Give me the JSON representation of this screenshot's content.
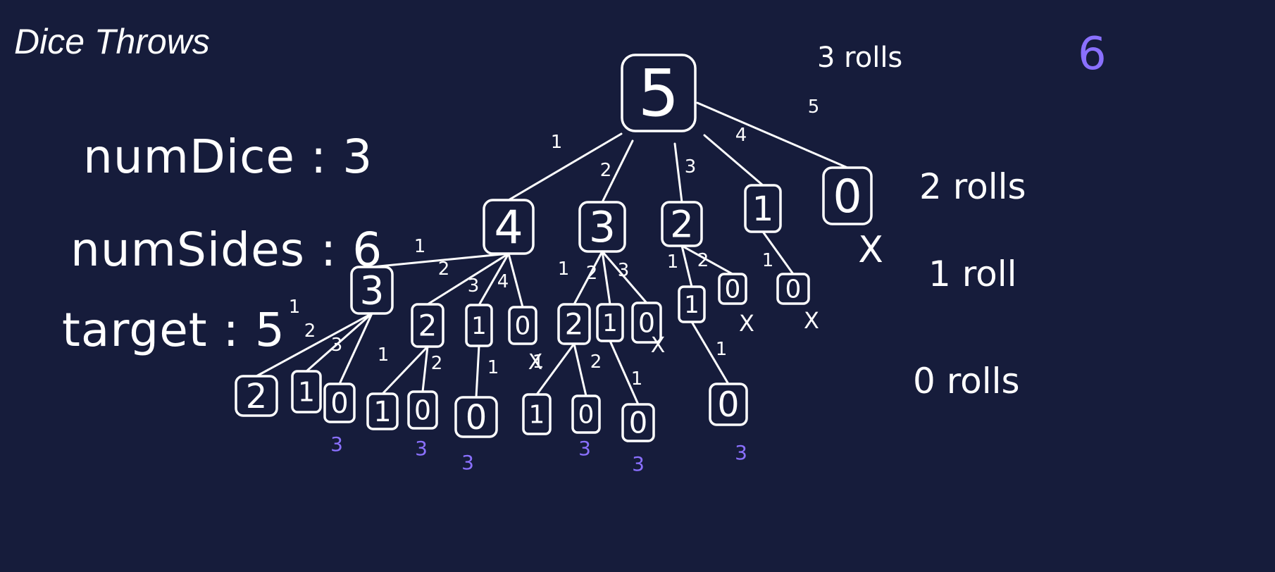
{
  "title": "Dice Throws",
  "params": {
    "num_dice": "numDice : 3",
    "num_sides": "numSides : 6",
    "target": "target  : 5"
  },
  "levels": {
    "three": "3 rolls",
    "two": "2 rolls",
    "one": "1 roll",
    "zero": "0 rolls"
  },
  "answer": "6",
  "colors": {
    "background": "#161c3b",
    "ink": "#ffffff",
    "highlight": "#8a70ff"
  },
  "tree": {
    "root": "5",
    "level1": [
      "4",
      "3",
      "2",
      "1",
      "0"
    ],
    "level2": [
      "3",
      "2",
      "1",
      "0",
      "2",
      "1",
      "0",
      "1",
      "0",
      "0"
    ],
    "level3": [
      "2",
      "1",
      "0",
      "1",
      "0",
      "0",
      "1",
      "0",
      "0",
      "0"
    ],
    "edge_labels": {
      "root": [
        "1",
        "2",
        "3",
        "4",
        "5"
      ],
      "from_4": [
        "1",
        "2",
        "3",
        "4"
      ],
      "from_3": [
        "1",
        "2",
        "3"
      ],
      "from_2": [
        "1",
        "2"
      ],
      "from_1": [
        "1"
      ],
      "from_3_left": [
        "1",
        "2",
        "3"
      ],
      "from_2_left": [
        "1",
        "2"
      ],
      "from_1_left": [
        "1"
      ],
      "from_2_mid": [
        "1",
        "2"
      ],
      "from_1_mid": [
        "1"
      ],
      "from_1_right": [
        "1"
      ]
    },
    "crossed_marker": "X",
    "success_marks": [
      "3",
      "3",
      "3",
      "3",
      "3",
      "3"
    ]
  }
}
